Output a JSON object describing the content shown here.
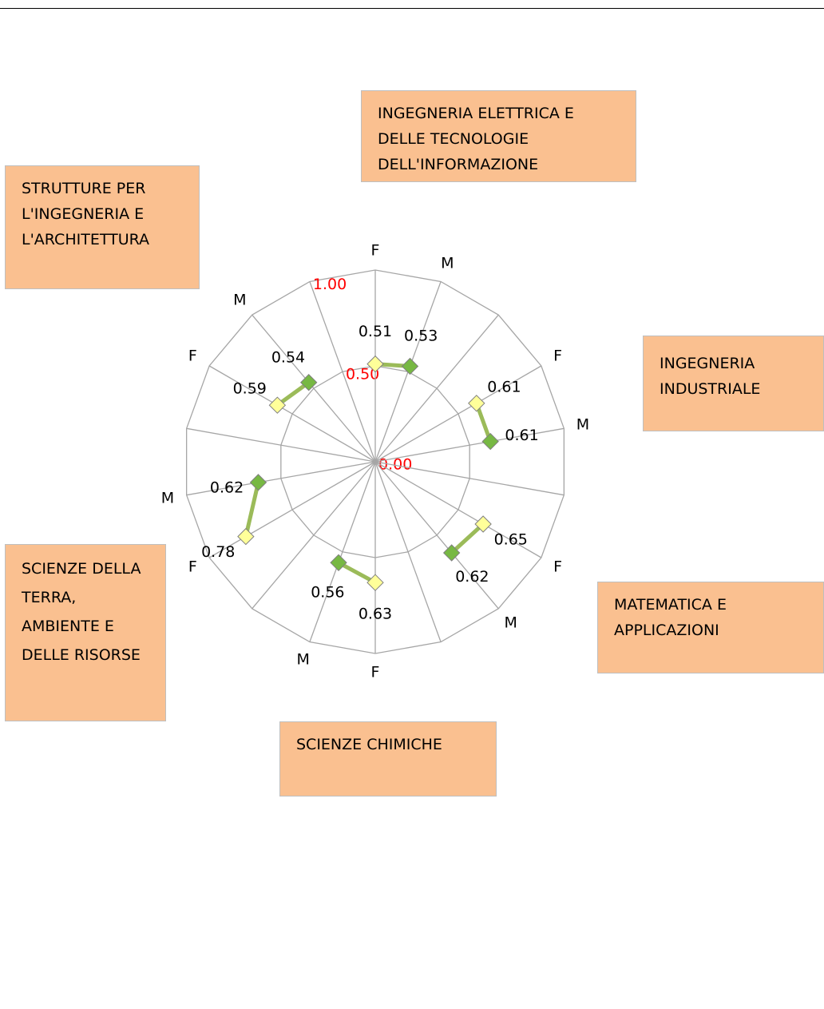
{
  "chart_data": {
    "type": "radar",
    "categories": [
      "F",
      "M",
      null,
      "F",
      "M",
      null,
      "F",
      "M",
      null,
      "F",
      "M",
      null,
      "F",
      "M",
      null,
      "F",
      "M",
      null
    ],
    "series": [
      {
        "color": "#9bbb59",
        "values": [
          0.51,
          0.53,
          null,
          0.61,
          0.61,
          null,
          0.65,
          0.62,
          null,
          0.63,
          0.56,
          null,
          0.78,
          0.62,
          null,
          0.59,
          0.54,
          null
        ]
      }
    ],
    "point_colors": {
      "F": "#ffff99",
      "M": "#77b843"
    },
    "ylim": [
      0,
      1
    ],
    "yticks": [
      {
        "value": 0,
        "label": "0.00"
      },
      {
        "value": 0.5,
        "label": "0.50"
      },
      {
        "value": 1,
        "label": "1.00"
      }
    ],
    "groups": [
      "INGEGNERIA ELETTRICA E DELLE TECNOLOGIE DELL'INFORMAZIONE",
      "INGEGNERIA INDUSTRIALE",
      "MATEMATICA E APPLICAZIONI",
      "SCIENZE CHIMICHE",
      "SCIENZE DELLA TERRA, AMBIENTE E DELLE RISORSE",
      "STRUTTURE PER L'INGEGNERIA E L'ARCHITETTURA"
    ]
  }
}
